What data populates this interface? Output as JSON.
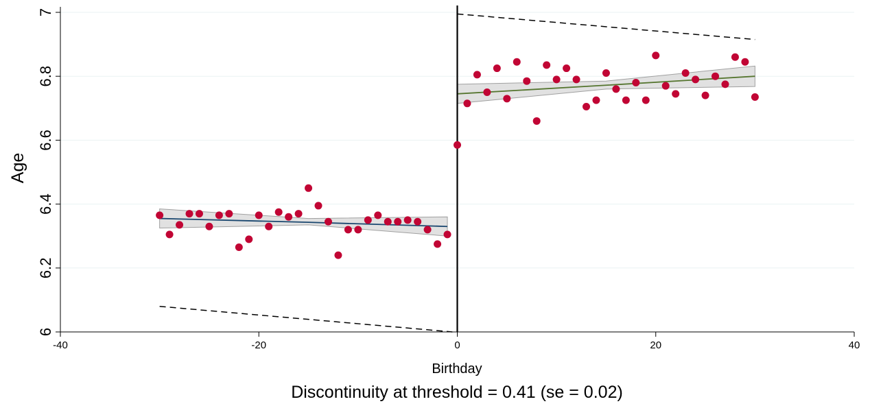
{
  "chart_data": {
    "type": "scatter",
    "subtitle": "Discontinuity at threshold = 0.41 (se = 0.02)",
    "xlabel": "Birthday",
    "ylabel": "Age",
    "xlim": [
      -40,
      40
    ],
    "xticks": [
      -40,
      -20,
      0,
      20,
      40
    ],
    "ylim": [
      6,
      7
    ],
    "yticks": [
      6,
      6.2,
      6.4,
      6.6,
      6.8,
      7
    ],
    "grid": true,
    "threshold": 0,
    "points": {
      "color": "#c10534",
      "x": [
        -30,
        -29,
        -28,
        -27,
        -26,
        -25,
        -24,
        -23,
        -22,
        -21,
        -20,
        -19,
        -18,
        -17,
        -16,
        -15,
        -14,
        -13,
        -12,
        -11,
        -10,
        -9,
        -8,
        -7,
        -6,
        -5,
        -4,
        -3,
        -2,
        -1,
        0,
        1,
        2,
        3,
        4,
        5,
        6,
        7,
        8,
        9,
        10,
        11,
        12,
        13,
        14,
        15,
        16,
        17,
        18,
        19,
        20,
        21,
        22,
        23,
        24,
        25,
        26,
        27,
        28,
        29,
        30
      ],
      "values": [
        6.365,
        6.305,
        6.335,
        6.37,
        6.37,
        6.33,
        6.365,
        6.37,
        6.265,
        6.29,
        6.365,
        6.33,
        6.375,
        6.36,
        6.37,
        6.45,
        6.395,
        6.345,
        6.24,
        6.32,
        6.32,
        6.35,
        6.365,
        6.345,
        6.345,
        6.35,
        6.345,
        6.32,
        6.275,
        6.305,
        6.585,
        6.715,
        6.805,
        6.75,
        6.825,
        6.73,
        6.845,
        6.785,
        6.66,
        6.835,
        6.79,
        6.825,
        6.79,
        6.705,
        6.725,
        6.81,
        6.76,
        6.725,
        6.78,
        6.725,
        6.865,
        6.77,
        6.745,
        6.81,
        6.79,
        6.74,
        6.8,
        6.775,
        6.86,
        6.845,
        6.735
      ]
    },
    "fits": [
      {
        "color": "#1a476f",
        "x": [
          -30,
          -15,
          -1
        ],
        "values": [
          6.355,
          6.343,
          6.33
        ],
        "lower": [
          6.325,
          6.335,
          6.3
        ],
        "upper": [
          6.385,
          6.355,
          6.36
        ]
      },
      {
        "color": "#55752f",
        "x": [
          0,
          15,
          30
        ],
        "values": [
          6.745,
          6.772,
          6.8
        ],
        "lower": [
          6.715,
          6.76,
          6.768
        ],
        "upper": [
          6.775,
          6.785,
          6.832
        ]
      }
    ],
    "bounds": [
      {
        "x": [
          -30,
          -0.5
        ],
        "values": [
          6.08,
          6.0
        ]
      },
      {
        "x": [
          0,
          30
        ],
        "values": [
          6.995,
          6.915
        ]
      }
    ]
  }
}
